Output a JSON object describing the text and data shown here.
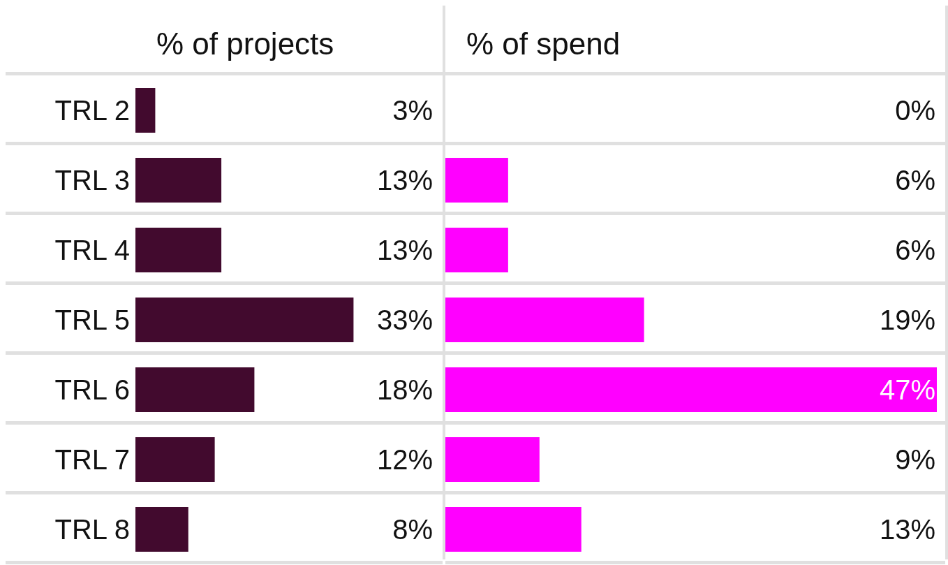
{
  "chart_data": [
    {
      "type": "bar",
      "orientation": "horizontal",
      "title": "% of projects",
      "categories": [
        "TRL 2",
        "TRL 3",
        "TRL 4",
        "TRL 5",
        "TRL 6",
        "TRL 7",
        "TRL 8"
      ],
      "values": [
        3,
        13,
        13,
        33,
        18,
        12,
        8
      ],
      "value_labels": [
        "3%",
        "13%",
        "13%",
        "33%",
        "18%",
        "12%",
        "8%"
      ],
      "color": "#420a2e",
      "tick_labels": "y"
    },
    {
      "type": "bar",
      "orientation": "horizontal",
      "title": "% of spend",
      "categories": [
        null,
        null,
        null,
        null,
        null,
        null,
        null
      ],
      "values": [
        0,
        6,
        6,
        19,
        47,
        9,
        13
      ],
      "value_labels": [
        "0%",
        "6%",
        "6%",
        "19%",
        "47%",
        "9%",
        "13%"
      ],
      "color": "#ff00ff",
      "tick_labels": false
    }
  ]
}
